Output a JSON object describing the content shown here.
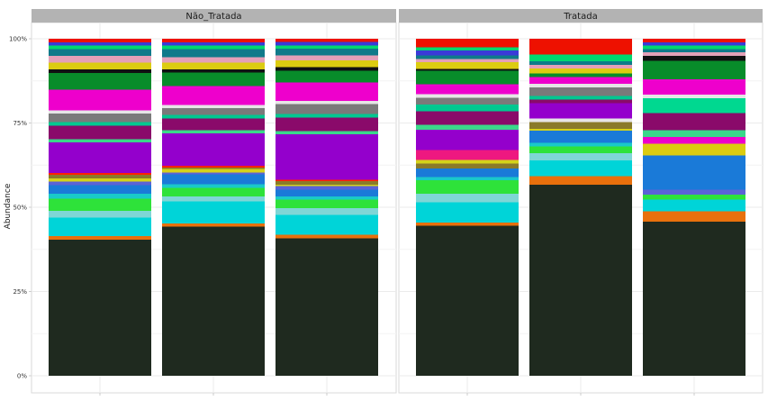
{
  "chart_data": {
    "type": "bar",
    "stacked": true,
    "ylabel": "Abundance",
    "xlabel": "",
    "ylim": [
      0,
      100
    ],
    "y_ticks": [
      "0%",
      "25%",
      "50%",
      "75%",
      "100%"
    ],
    "grid": true,
    "facets": [
      {
        "label": "Não_Tratada",
        "bars": [
          {
            "segments": [
              {
                "color": "#1f2a1f",
                "value": 40.0
              },
              {
                "color": "#e8700c",
                "value": 1.0
              },
              {
                "color": "#00d4d8",
                "value": 5.5
              },
              {
                "color": "#7fd6d6",
                "value": 2.0
              },
              {
                "color": "#2ee23a",
                "value": 3.5
              },
              {
                "color": "#19c9c9",
                "value": 1.5
              },
              {
                "color": "#1a7ad8",
                "value": 2.5
              },
              {
                "color": "#5b63d6",
                "value": 1.0
              },
              {
                "color": "#d4d21a",
                "value": 1.0
              },
              {
                "color": "#8a7a2a",
                "value": 1.0
              },
              {
                "color": "#ff2200",
                "value": 0.5
              },
              {
                "color": "#9400cc",
                "value": 9.0
              },
              {
                "color": "#3ad88a",
                "value": 1.0
              },
              {
                "color": "#8a0a6a",
                "value": 4.0
              },
              {
                "color": "#00c890",
                "value": 1.0
              },
              {
                "color": "#7a7a7a",
                "value": 2.5
              },
              {
                "color": "#e6e6e6",
                "value": 1.0
              },
              {
                "color": "#ee00cc",
                "value": 6.0
              },
              {
                "color": "#088c2a",
                "value": 5.0
              },
              {
                "color": "#111111",
                "value": 1.0
              },
              {
                "color": "#dccc10",
                "value": 2.0
              },
              {
                "color": "#e4a0b8",
                "value": 2.0
              },
              {
                "color": "#0f7a8a",
                "value": 2.0
              },
              {
                "color": "#00d870",
                "value": 1.0
              },
              {
                "color": "#3a3ad8",
                "value": 1.0
              },
              {
                "color": "#ee1100",
                "value": 1.0
              }
            ]
          },
          {
            "segments": [
              {
                "color": "#1f2a1f",
                "value": 44.0
              },
              {
                "color": "#e8700c",
                "value": 1.0
              },
              {
                "color": "#00d4d8",
                "value": 6.5
              },
              {
                "color": "#7fd6d6",
                "value": 1.5
              },
              {
                "color": "#2ee23a",
                "value": 2.5
              },
              {
                "color": "#19c9c9",
                "value": 1.0
              },
              {
                "color": "#1a7ad8",
                "value": 3.0
              },
              {
                "color": "#5b63d6",
                "value": 0.5
              },
              {
                "color": "#d4d21a",
                "value": 1.0
              },
              {
                "color": "#8a7a2a",
                "value": 0.5
              },
              {
                "color": "#ff2200",
                "value": 0.5
              },
              {
                "color": "#9400cc",
                "value": 9.5
              },
              {
                "color": "#3ad88a",
                "value": 1.0
              },
              {
                "color": "#8a0a6a",
                "value": 3.5
              },
              {
                "color": "#00c890",
                "value": 1.0
              },
              {
                "color": "#7a7a7a",
                "value": 2.0
              },
              {
                "color": "#e6e6e6",
                "value": 1.0
              },
              {
                "color": "#ee00cc",
                "value": 5.5
              },
              {
                "color": "#088c2a",
                "value": 4.0
              },
              {
                "color": "#111111",
                "value": 1.0
              },
              {
                "color": "#dccc10",
                "value": 2.0
              },
              {
                "color": "#e4a0b8",
                "value": 1.5
              },
              {
                "color": "#0f7a8a",
                "value": 2.5
              },
              {
                "color": "#00d870",
                "value": 1.0
              },
              {
                "color": "#3a3ad8",
                "value": 1.0
              },
              {
                "color": "#ee1100",
                "value": 1.0
              }
            ]
          },
          {
            "segments": [
              {
                "color": "#1f2a1f",
                "value": 41.0
              },
              {
                "color": "#e8700c",
                "value": 1.0
              },
              {
                "color": "#00d4d8",
                "value": 6.0
              },
              {
                "color": "#7fd6d6",
                "value": 2.0
              },
              {
                "color": "#2ee23a",
                "value": 2.5
              },
              {
                "color": "#19c9c9",
                "value": 1.0
              },
              {
                "color": "#1a7ad8",
                "value": 2.0
              },
              {
                "color": "#5b63d6",
                "value": 1.0
              },
              {
                "color": "#d4d21a",
                "value": 0.5
              },
              {
                "color": "#8a7a2a",
                "value": 1.0
              },
              {
                "color": "#ff2200",
                "value": 0.5
              },
              {
                "color": "#9400cc",
                "value": 13.5
              },
              {
                "color": "#3ad88a",
                "value": 1.0
              },
              {
                "color": "#8a0a6a",
                "value": 4.0
              },
              {
                "color": "#00c890",
                "value": 1.0
              },
              {
                "color": "#7a7a7a",
                "value": 3.0
              },
              {
                "color": "#e6e6e6",
                "value": 1.0
              },
              {
                "color": "#ee00cc",
                "value": 5.5
              },
              {
                "color": "#088c2a",
                "value": 3.5
              },
              {
                "color": "#111111",
                "value": 1.0
              },
              {
                "color": "#dccc10",
                "value": 2.0
              },
              {
                "color": "#e4a0b8",
                "value": 1.5
              },
              {
                "color": "#0f7a8a",
                "value": 2.0
              },
              {
                "color": "#00d870",
                "value": 1.0
              },
              {
                "color": "#3a3ad8",
                "value": 1.0
              },
              {
                "color": "#ee1100",
                "value": 1.0
              }
            ]
          }
        ]
      },
      {
        "label": "Tratada",
        "bars": [
          {
            "segments": [
              {
                "color": "#1f2a1f",
                "value": 44.5
              },
              {
                "color": "#e8700c",
                "value": 1.0
              },
              {
                "color": "#00d4d8",
                "value": 6.0
              },
              {
                "color": "#7fd6d6",
                "value": 2.5
              },
              {
                "color": "#2ee23a",
                "value": 4.0
              },
              {
                "color": "#19c9c9",
                "value": 1.0
              },
              {
                "color": "#1a7ad8",
                "value": 2.5
              },
              {
                "color": "#8a7a2a",
                "value": 1.5
              },
              {
                "color": "#d4d21a",
                "value": 1.0
              },
              {
                "color": "#ee1880",
                "value": 3.0
              },
              {
                "color": "#9400cc",
                "value": 6.0
              },
              {
                "color": "#3ad88a",
                "value": 1.5
              },
              {
                "color": "#8a0a6a",
                "value": 4.0
              },
              {
                "color": "#00c890",
                "value": 2.0
              },
              {
                "color": "#7a7a7a",
                "value": 2.0
              },
              {
                "color": "#e6e6e6",
                "value": 1.0
              },
              {
                "color": "#ee00cc",
                "value": 3.0
              },
              {
                "color": "#088c2a",
                "value": 4.0
              },
              {
                "color": "#111111",
                "value": 0.5
              },
              {
                "color": "#dccc10",
                "value": 2.0
              },
              {
                "color": "#e4a0b8",
                "value": 1.0
              },
              {
                "color": "#0f7a8a",
                "value": 1.0
              },
              {
                "color": "#3a3ad8",
                "value": 1.5
              },
              {
                "color": "#00d870",
                "value": 1.0
              },
              {
                "color": "#ee1100",
                "value": 2.5
              }
            ]
          },
          {
            "segments": [
              {
                "color": "#1f2a1f",
                "value": 55.0
              },
              {
                "color": "#e8700c",
                "value": 2.5
              },
              {
                "color": "#00d4d8",
                "value": 4.5
              },
              {
                "color": "#7fd6d6",
                "value": 2.0
              },
              {
                "color": "#2ee23a",
                "value": 2.0
              },
              {
                "color": "#19c9c9",
                "value": 1.0
              },
              {
                "color": "#1a7ad8",
                "value": 3.5
              },
              {
                "color": "#d4d21a",
                "value": 0.5
              },
              {
                "color": "#8a7a2a",
                "value": 2.0
              },
              {
                "color": "#e6e6e6",
                "value": 1.0
              },
              {
                "color": "#9400cc",
                "value": 4.5
              },
              {
                "color": "#8a0a6a",
                "value": 1.0
              },
              {
                "color": "#00c890",
                "value": 1.0
              },
              {
                "color": "#7a7a7a",
                "value": 2.5
              },
              {
                "color": "#e6e6e6",
                "value": 1.0
              },
              {
                "color": "#ee00cc",
                "value": 2.0
              },
              {
                "color": "#088c2a",
                "value": 1.0
              },
              {
                "color": "#dccc10",
                "value": 1.5
              },
              {
                "color": "#e4a0b8",
                "value": 1.0
              },
              {
                "color": "#0f7a8a",
                "value": 1.0
              },
              {
                "color": "#00d870",
                "value": 2.0
              },
              {
                "color": "#ee1100",
                "value": 4.5
              }
            ]
          },
          {
            "segments": [
              {
                "color": "#1f2a1f",
                "value": 45.5
              },
              {
                "color": "#e8700c",
                "value": 3.0
              },
              {
                "color": "#00d4d8",
                "value": 3.5
              },
              {
                "color": "#2ee23a",
                "value": 1.5
              },
              {
                "color": "#5b63d6",
                "value": 1.5
              },
              {
                "color": "#1a7ad8",
                "value": 10.0
              },
              {
                "color": "#dccc10",
                "value": 3.5
              },
              {
                "color": "#ee00cc",
                "value": 2.0
              },
              {
                "color": "#3ad88a",
                "value": 2.0
              },
              {
                "color": "#8a0a6a",
                "value": 5.0
              },
              {
                "color": "#00d890",
                "value": 4.5
              },
              {
                "color": "#e6e6e6",
                "value": 1.0
              },
              {
                "color": "#ee00cc",
                "value": 4.5
              },
              {
                "color": "#088c2a",
                "value": 5.5
              },
              {
                "color": "#111111",
                "value": 1.5
              },
              {
                "color": "#e4a0b8",
                "value": 1.0
              },
              {
                "color": "#0f7a8a",
                "value": 1.0
              },
              {
                "color": "#00d870",
                "value": 1.0
              },
              {
                "color": "#3a3ad8",
                "value": 1.0
              },
              {
                "color": "#ee1100",
                "value": 1.0
              }
            ]
          }
        ]
      }
    ]
  }
}
